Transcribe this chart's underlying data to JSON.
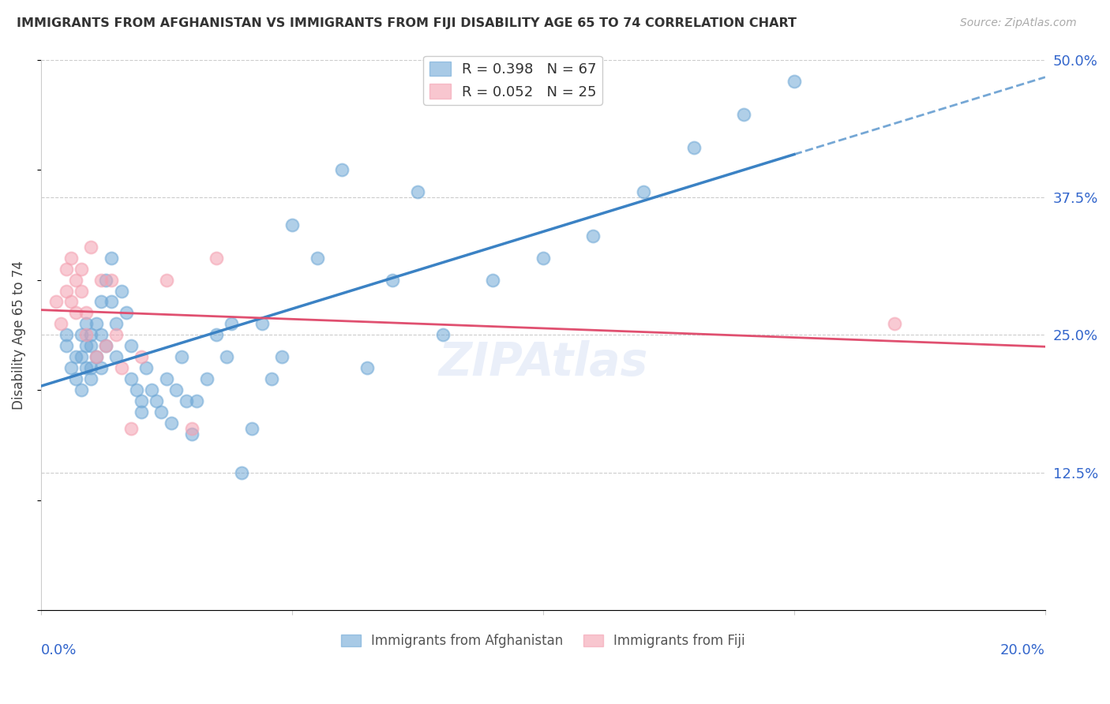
{
  "title": "IMMIGRANTS FROM AFGHANISTAN VS IMMIGRANTS FROM FIJI DISABILITY AGE 65 TO 74 CORRELATION CHART",
  "source": "Source: ZipAtlas.com",
  "ylabel": "Disability Age 65 to 74",
  "xmin": 0.0,
  "xmax": 0.2,
  "ymin": 0.0,
  "ymax": 0.5,
  "afghanistan_color": "#6fa8d6",
  "fiji_color": "#f4a0b0",
  "afghanistan_line_color": "#3b82c4",
  "fiji_line_color": "#e05070",
  "afghanistan_R": 0.398,
  "afghanistan_N": 67,
  "fiji_R": 0.052,
  "fiji_N": 25,
  "right_tick_color": "#3366cc",
  "watermark": "ZIPAtlas",
  "afghanistan_x": [
    0.005,
    0.005,
    0.006,
    0.007,
    0.007,
    0.008,
    0.008,
    0.008,
    0.009,
    0.009,
    0.009,
    0.01,
    0.01,
    0.01,
    0.01,
    0.011,
    0.011,
    0.012,
    0.012,
    0.012,
    0.013,
    0.013,
    0.014,
    0.014,
    0.015,
    0.015,
    0.016,
    0.017,
    0.018,
    0.018,
    0.019,
    0.02,
    0.02,
    0.021,
    0.022,
    0.023,
    0.024,
    0.025,
    0.026,
    0.027,
    0.028,
    0.029,
    0.03,
    0.031,
    0.033,
    0.035,
    0.037,
    0.038,
    0.04,
    0.042,
    0.044,
    0.046,
    0.048,
    0.05,
    0.055,
    0.06,
    0.065,
    0.07,
    0.075,
    0.08,
    0.09,
    0.1,
    0.11,
    0.12,
    0.13,
    0.14,
    0.15
  ],
  "afghanistan_y": [
    0.24,
    0.25,
    0.22,
    0.21,
    0.23,
    0.2,
    0.23,
    0.25,
    0.22,
    0.24,
    0.26,
    0.21,
    0.22,
    0.24,
    0.25,
    0.23,
    0.26,
    0.22,
    0.25,
    0.28,
    0.24,
    0.3,
    0.28,
    0.32,
    0.23,
    0.26,
    0.29,
    0.27,
    0.21,
    0.24,
    0.2,
    0.18,
    0.19,
    0.22,
    0.2,
    0.19,
    0.18,
    0.21,
    0.17,
    0.2,
    0.23,
    0.19,
    0.16,
    0.19,
    0.21,
    0.25,
    0.23,
    0.26,
    0.125,
    0.165,
    0.26,
    0.21,
    0.23,
    0.35,
    0.32,
    0.4,
    0.22,
    0.3,
    0.38,
    0.25,
    0.3,
    0.32,
    0.34,
    0.38,
    0.42,
    0.45,
    0.48
  ],
  "fiji_x": [
    0.003,
    0.004,
    0.005,
    0.005,
    0.006,
    0.006,
    0.007,
    0.007,
    0.008,
    0.008,
    0.009,
    0.009,
    0.01,
    0.011,
    0.012,
    0.013,
    0.014,
    0.015,
    0.016,
    0.018,
    0.02,
    0.025,
    0.03,
    0.035,
    0.17
  ],
  "fiji_y": [
    0.28,
    0.26,
    0.31,
    0.29,
    0.32,
    0.28,
    0.3,
    0.27,
    0.29,
    0.31,
    0.27,
    0.25,
    0.33,
    0.23,
    0.3,
    0.24,
    0.3,
    0.25,
    0.22,
    0.165,
    0.23,
    0.3,
    0.165,
    0.32,
    0.26
  ]
}
